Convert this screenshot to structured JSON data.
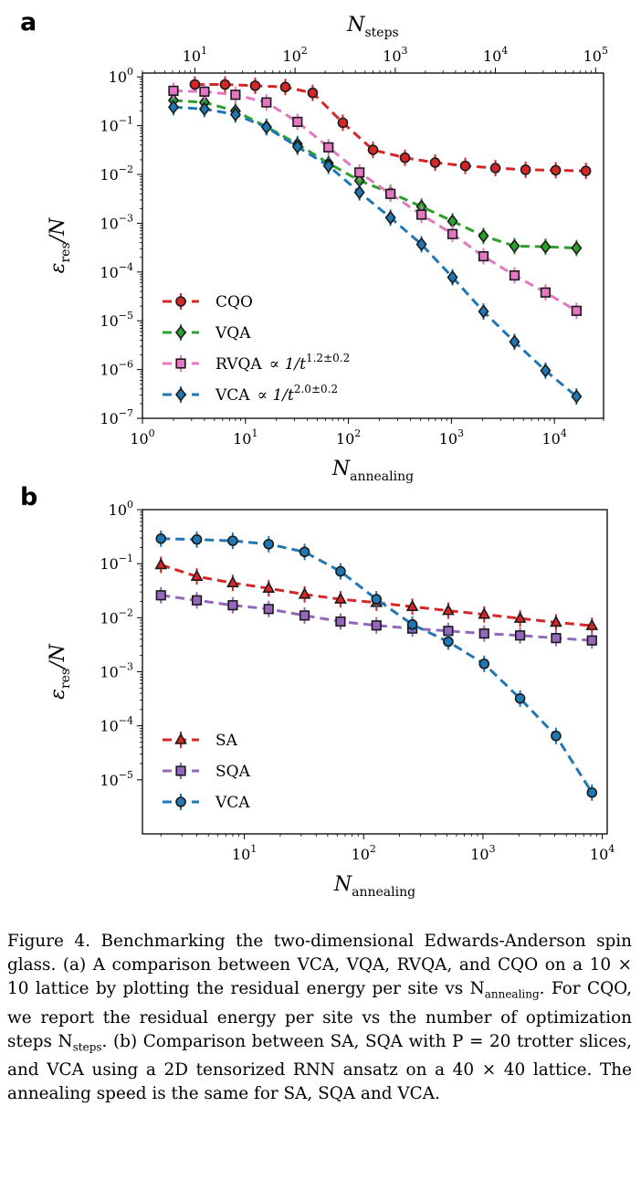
{
  "chart_data": [
    {
      "panel": "a",
      "type": "line",
      "xlabel_main": "N",
      "xlabel_sub": "annealing",
      "xlabel_top_main": "N",
      "xlabel_top_sub": "steps",
      "ylabel_main": "ε",
      "ylabel_sub": "res",
      "ylabel_tail": "/N",
      "xscale": "log",
      "yscale": "log",
      "xlim": [
        1,
        30000
      ],
      "ylim": [
        1e-07,
        1.2
      ],
      "xticks": [
        1,
        10,
        100,
        1000,
        10000
      ],
      "xticks_top": [
        10,
        100,
        1000,
        10000,
        100000
      ],
      "x_top_lim": [
        3,
        120000
      ],
      "yticks": [
        1e-07,
        1e-06,
        1e-05,
        0.0001,
        0.001,
        0.01,
        0.1,
        1
      ],
      "legend_position": "lower-left",
      "series": [
        {
          "name": "CQO",
          "color": "#d62728",
          "marker": "circle",
          "axis": "top",
          "x": [
            10,
            20,
            40,
            80,
            150,
            300,
            600,
            1250,
            2500,
            5000,
            10000,
            20000,
            40000,
            80000
          ],
          "y": [
            0.7,
            0.7,
            0.66,
            0.62,
            0.47,
            0.115,
            0.032,
            0.022,
            0.0175,
            0.015,
            0.0135,
            0.0125,
            0.0122,
            0.0118
          ]
        },
        {
          "name": "VQA",
          "color": "#2ca02c",
          "marker": "diamond",
          "axis": "bottom",
          "x": [
            2,
            4,
            8,
            16,
            32,
            64,
            128,
            256,
            512,
            1024,
            2048,
            4096,
            8192,
            16384
          ],
          "y": [
            0.33,
            0.3,
            0.2,
            0.095,
            0.042,
            0.017,
            0.0075,
            0.0042,
            0.0022,
            0.0011,
            0.00055,
            0.00034,
            0.00033,
            0.00031
          ]
        },
        {
          "name": "RVQA",
          "label_extra": "∝  1/t",
          "label_exp": "1.2±0.2",
          "color": "#e377c2",
          "marker": "square",
          "axis": "bottom",
          "x": [
            2,
            4,
            8,
            16,
            32,
            64,
            128,
            256,
            512,
            1024,
            2048,
            4096,
            8192,
            16384
          ],
          "y": [
            0.52,
            0.5,
            0.43,
            0.3,
            0.12,
            0.036,
            0.011,
            0.004,
            0.0015,
            0.0006,
            0.00021,
            8.5e-05,
            3.8e-05,
            1.6e-05
          ]
        },
        {
          "name": "VCA",
          "label_extra": "∝  1/t",
          "label_exp": "2.0±0.2",
          "color": "#1f77b4",
          "marker": "diamond",
          "axis": "bottom",
          "x": [
            2,
            4,
            8,
            16,
            32,
            64,
            128,
            256,
            512,
            1024,
            2048,
            4096,
            8192,
            16384
          ],
          "y": [
            0.24,
            0.22,
            0.17,
            0.093,
            0.037,
            0.015,
            0.0043,
            0.0013,
            0.00037,
            7.8e-05,
            1.55e-05,
            3.7e-06,
            9.5e-07,
            2.8e-07
          ]
        }
      ]
    },
    {
      "panel": "b",
      "type": "line",
      "xlabel_main": "N",
      "xlabel_sub": "annealing",
      "ylabel_main": "ε",
      "ylabel_sub": "res",
      "ylabel_tail": "/N",
      "xscale": "log",
      "yscale": "log",
      "xlim": [
        1.4,
        11000
      ],
      "ylim": [
        1e-06,
        1.0
      ],
      "xticks": [
        10,
        100,
        1000,
        10000
      ],
      "yticks": [
        1e-06,
        1e-05,
        0.0001,
        0.001,
        0.01,
        0.1,
        1
      ],
      "legend_position": "lower-left",
      "series": [
        {
          "name": "SA",
          "color": "#d62728",
          "marker": "triangle",
          "x": [
            2,
            4,
            8,
            16,
            32,
            64,
            128,
            256,
            512,
            1024,
            2048,
            4096,
            8192
          ],
          "y": [
            0.095,
            0.058,
            0.044,
            0.035,
            0.027,
            0.022,
            0.019,
            0.016,
            0.0135,
            0.0115,
            0.0097,
            0.0082,
            0.0071
          ]
        },
        {
          "name": "SQA",
          "color": "#9467bd",
          "marker": "square",
          "x": [
            2,
            4,
            8,
            16,
            32,
            64,
            128,
            256,
            512,
            1024,
            2048,
            4096,
            8192
          ],
          "y": [
            0.026,
            0.021,
            0.017,
            0.0145,
            0.011,
            0.0085,
            0.0072,
            0.0063,
            0.0057,
            0.0051,
            0.0047,
            0.0042,
            0.0038
          ]
        },
        {
          "name": "VCA",
          "color": "#1f77b4",
          "marker": "circle",
          "x": [
            2,
            4,
            8,
            16,
            32,
            64,
            128,
            256,
            512,
            1024,
            2048,
            4096,
            8192
          ],
          "y": [
            0.29,
            0.28,
            0.265,
            0.23,
            0.165,
            0.072,
            0.022,
            0.0075,
            0.0036,
            0.0014,
            0.00032,
            6.5e-05,
            5.8e-06
          ]
        }
      ]
    }
  ],
  "panel_labels": [
    "a",
    "b"
  ],
  "caption": {
    "lead": "Figure 4.",
    "body": "Benchmarking the two-dimensional Edwards-Anderson spin glass. (a) A comparison between VCA, VQA, RVQA, and CQO on a 10 × 10 lattice by plotting the residual energy per site vs N",
    "sub1": "annealing",
    "mid": ". For CQO, we report the residual energy per site vs the number of optimization steps N",
    "sub2": "steps",
    "end": ". (b) Comparison between SA, SQA with P = 20 trotter slices, and VCA using a 2D tensorized RNN ansatz on a 40 × 40 lattice. The annealing speed is the same for SA, SQA and VCA."
  }
}
